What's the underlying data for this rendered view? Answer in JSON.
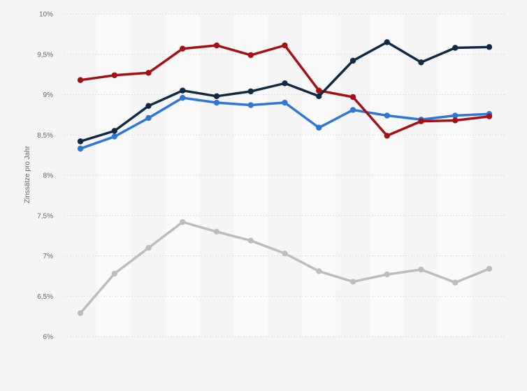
{
  "chart_data": {
    "type": "line",
    "title": "",
    "xlabel": "",
    "ylabel": "Zinssätze pro Jahr",
    "ylim": [
      6,
      10
    ],
    "yticks": [
      {
        "value": 10,
        "label": "10%"
      },
      {
        "value": 9.5,
        "label": "9,5%"
      },
      {
        "value": 9,
        "label": "9%"
      },
      {
        "value": 8.5,
        "label": "8,5%"
      },
      {
        "value": 8,
        "label": "8%"
      },
      {
        "value": 7.5,
        "label": "7,5%"
      },
      {
        "value": 7,
        "label": "7%"
      },
      {
        "value": 6.5,
        "label": "6,5%"
      },
      {
        "value": 6,
        "label": "6%"
      }
    ],
    "grid": true,
    "legend": "none",
    "point_count": 13,
    "series": [
      {
        "color": "#2f77d6",
        "values": [
          8.33,
          8.48,
          8.71,
          8.96,
          8.9,
          8.87,
          8.9,
          8.59,
          8.81,
          8.74,
          8.69,
          8.74,
          8.76
        ]
      },
      {
        "color": "#a50f15",
        "values": [
          9.18,
          9.24,
          9.27,
          9.57,
          9.61,
          9.49,
          9.61,
          9.05,
          8.97,
          8.49,
          8.67,
          8.68,
          8.73
        ]
      },
      {
        "color": "#0f2a44",
        "values": [
          8.42,
          8.55,
          8.86,
          9.05,
          8.98,
          9.04,
          9.14,
          8.98,
          9.42,
          9.65,
          9.4,
          9.58,
          9.59
        ]
      },
      {
        "color": "#bdbdbd",
        "values": [
          6.29,
          6.78,
          7.1,
          7.42,
          7.3,
          7.19,
          7.03,
          6.81,
          6.68,
          6.77,
          6.83,
          6.67,
          6.84
        ]
      }
    ]
  }
}
